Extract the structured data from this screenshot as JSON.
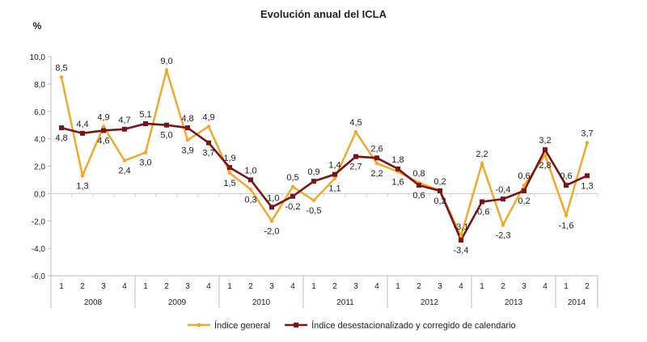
{
  "chart_data": {
    "type": "line",
    "title": "Evolución anual del ICLA",
    "ylabel": "%",
    "ylim": [
      -6,
      10
    ],
    "yticks": [
      "10,0",
      "8,0",
      "6,0",
      "4,0",
      "2,0",
      "0,0",
      "-2,0",
      "-4,0",
      "-6,0"
    ],
    "ytick_values": [
      10,
      8,
      6,
      4,
      2,
      0,
      -2,
      -4,
      -6
    ],
    "quarters": [
      "1",
      "2",
      "3",
      "4",
      "1",
      "2",
      "3",
      "4",
      "1",
      "2",
      "3",
      "4",
      "1",
      "2",
      "3",
      "4",
      "1",
      "2",
      "3",
      "4",
      "1",
      "2",
      "3",
      "4",
      "1",
      "2"
    ],
    "years": [
      {
        "label": "2008",
        "count": 4
      },
      {
        "label": "2009",
        "count": 4
      },
      {
        "label": "2010",
        "count": 4
      },
      {
        "label": "2011",
        "count": 4
      },
      {
        "label": "2012",
        "count": 4
      },
      {
        "label": "2013",
        "count": 4
      },
      {
        "label": "2014",
        "count": 2
      }
    ],
    "legend_position": "bottom",
    "series": [
      {
        "name": "Índice general",
        "color": "#F5A623",
        "values": [
          8.5,
          1.3,
          4.9,
          2.4,
          3.0,
          9.0,
          3.9,
          4.9,
          1.5,
          0.3,
          -2.0,
          0.5,
          -0.5,
          1.1,
          4.5,
          2.2,
          1.6,
          0.8,
          0.2,
          -3.1,
          2.2,
          -2.3,
          0.6,
          2.8,
          -1.6,
          3.7
        ],
        "labels": [
          "8,5",
          "1,3",
          "4,9",
          "2,4",
          "3,0",
          "9,0",
          "3,9",
          "4,9",
          "1,5",
          "0,3",
          "-2,0",
          "0,5",
          "-0,5",
          "1,1",
          "4,5",
          "2,2",
          "1,6",
          "0,8",
          "0,2",
          "-3,1",
          "2,2",
          "-2,3",
          "0,6",
          "2,8",
          "-1,6",
          "3,7"
        ]
      },
      {
        "name": "Índice desestacionalizado y corregido de calendario",
        "color": "#7B1416",
        "values": [
          4.8,
          4.4,
          4.6,
          4.7,
          5.1,
          5.0,
          4.8,
          3.7,
          1.9,
          1.0,
          -1.0,
          -0.2,
          0.9,
          1.4,
          2.7,
          2.6,
          1.8,
          0.6,
          0.2,
          -3.4,
          -0.6,
          -0.4,
          0.2,
          3.2,
          0.6,
          1.3
        ],
        "labels": [
          "4,8",
          "4,4",
          "4,6",
          "4,7",
          "5,1",
          "5,0",
          "4,8",
          "3,7",
          "1,9",
          "1,0",
          "-1,0",
          "-0,2",
          "0,9",
          "1,4",
          "2,7",
          "2,6",
          "1,8",
          "0,6",
          "0,2",
          "-3,4",
          "-0,6",
          "-0,4",
          "0,2",
          "3,2",
          "0,6",
          "1,3"
        ]
      }
    ]
  }
}
